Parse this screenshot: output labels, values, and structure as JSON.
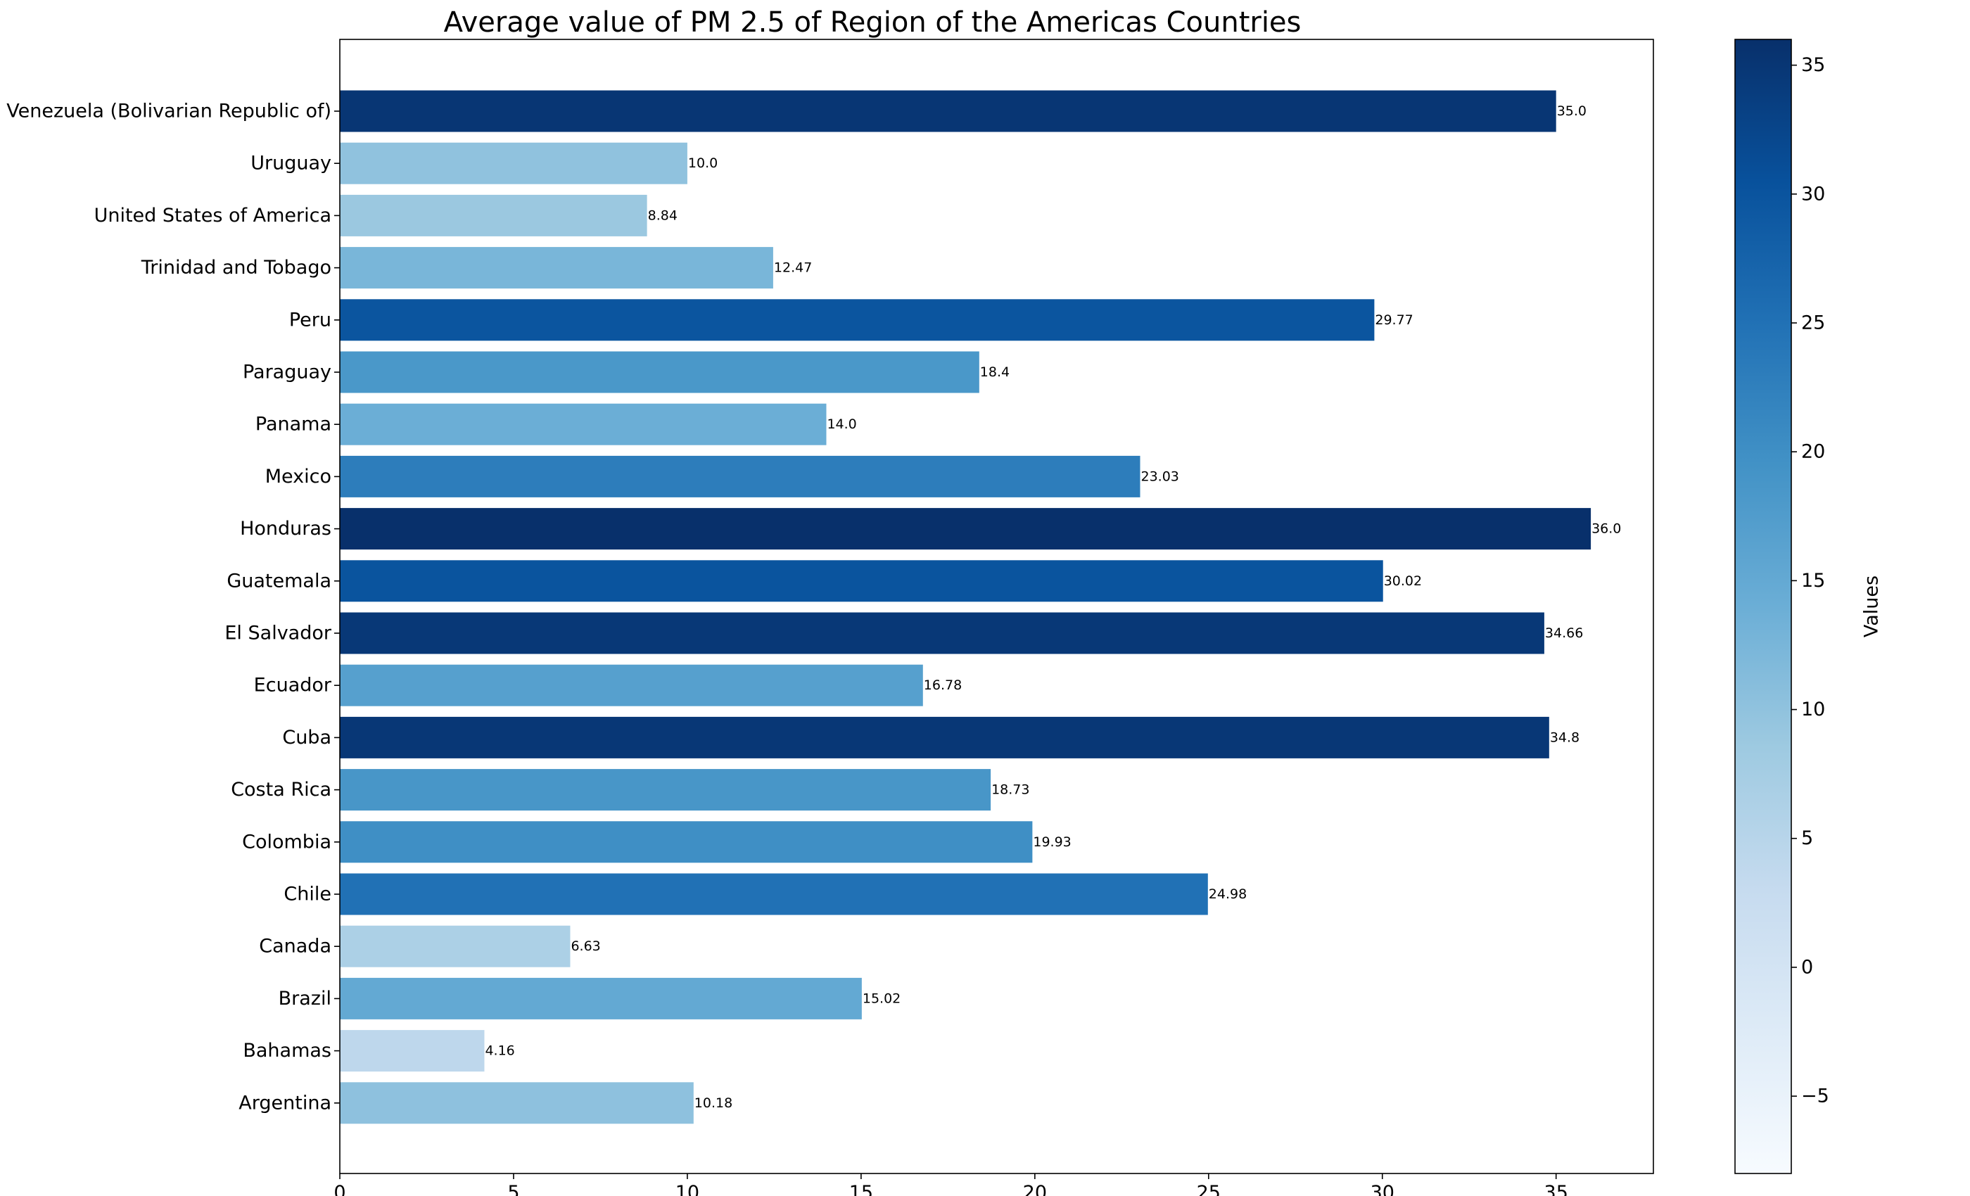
{
  "chart_data": {
    "type": "bar",
    "orientation": "horizontal",
    "title": "Average value of PM 2.5 of Region of the Americas Countries",
    "xlabel": "",
    "ylabel": "",
    "categories": [
      "Argentina",
      "Bahamas",
      "Brazil",
      "Canada",
      "Chile",
      "Colombia",
      "Costa Rica",
      "Cuba",
      "Ecuador",
      "El Salvador",
      "Guatemala",
      "Honduras",
      "Mexico",
      "Panama",
      "Paraguay",
      "Peru",
      "Trinidad and Tobago",
      "United States of America",
      "Uruguay",
      "Venezuela (Bolivarian Republic of)"
    ],
    "values": [
      10.18,
      4.16,
      15.02,
      6.63,
      24.98,
      19.93,
      18.73,
      34.8,
      16.78,
      34.66,
      30.02,
      36.0,
      23.03,
      14.0,
      18.4,
      29.77,
      12.47,
      8.84,
      10.0,
      35.0
    ],
    "value_labels": [
      "10.18",
      "4.16",
      "15.02",
      "6.63",
      "24.98",
      "19.93",
      "18.73",
      "34.8",
      "16.78",
      "34.66",
      "30.02",
      "36.0",
      "23.03",
      "14.0",
      "18.4",
      "29.77",
      "12.47",
      "8.84",
      "10.0",
      "35.0"
    ],
    "xlim": [
      0,
      37.8
    ],
    "xticks": [
      0,
      5,
      10,
      15,
      20,
      25,
      30,
      35
    ],
    "grid": false,
    "colorbar": {
      "label": "Values",
      "colormap": "Blues",
      "range": [
        -8,
        36
      ],
      "ticks": [
        -5,
        0,
        5,
        10,
        15,
        20,
        25,
        30,
        35
      ],
      "tick_labels": [
        "−5",
        "0",
        "5",
        "10",
        "15",
        "20",
        "25",
        "30",
        "35"
      ]
    }
  }
}
